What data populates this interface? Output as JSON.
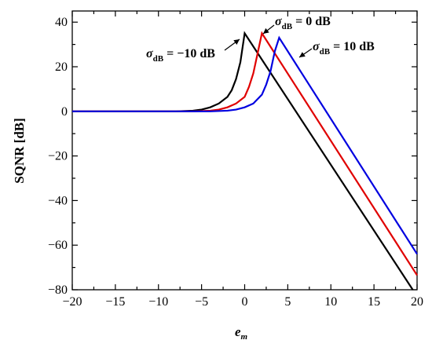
{
  "chart_data": {
    "type": "line",
    "xlabel": "e",
    "xlabel_subscript": "m",
    "ylabel": "SQNR [dB]",
    "xlim": [
      -20,
      20
    ],
    "ylim": [
      -80,
      45
    ],
    "x_ticks": [
      -20,
      -15,
      -10,
      -5,
      0,
      5,
      10,
      15,
      20
    ],
    "y_ticks": [
      -80,
      -60,
      -40,
      -20,
      0,
      20,
      40
    ],
    "x_tick_labels": [
      "−20",
      "−15",
      "−10",
      "−5",
      "0",
      "5",
      "10",
      "15",
      "20"
    ],
    "y_tick_labels": [
      "−80",
      "−60",
      "−40",
      "−20",
      "0",
      "20",
      "40"
    ],
    "grid": false,
    "series": [
      {
        "color": "#000000",
        "x": [
          -20,
          -8,
          -6,
          -5,
          -4,
          -3,
          -2,
          -1.5,
          -1,
          -0.5,
          0,
          19.5
        ],
        "y": [
          0,
          0,
          0.3,
          0.8,
          1.8,
          3.5,
          6.5,
          9.5,
          14.5,
          22,
          35,
          -80
        ]
      },
      {
        "color": "#e00000",
        "x": [
          -20,
          -6,
          -4,
          -3,
          -2,
          -1,
          0,
          0.5,
          1,
          1.5,
          2,
          20
        ],
        "y": [
          0,
          0,
          0.3,
          0.8,
          1.8,
          3.5,
          6.5,
          11,
          17,
          26,
          35,
          -73.5
        ]
      },
      {
        "color": "#0000e0",
        "x": [
          -20,
          -4,
          -2,
          -1,
          0,
          1,
          2,
          2.5,
          3,
          3.5,
          4,
          20
        ],
        "y": [
          0,
          0,
          0.3,
          0.8,
          1.8,
          3.5,
          7.5,
          12,
          18,
          27,
          33,
          -64
        ]
      }
    ],
    "annotations": [
      {
        "text": "σ",
        "sub": "dB",
        "rest": " = −10 dB",
        "series": 0
      },
      {
        "text": "σ",
        "sub": "dB",
        "rest": " = 0 dB",
        "series": 1
      },
      {
        "text": "σ",
        "sub": "dB",
        "rest": " = 10 dB",
        "series": 2
      }
    ]
  }
}
